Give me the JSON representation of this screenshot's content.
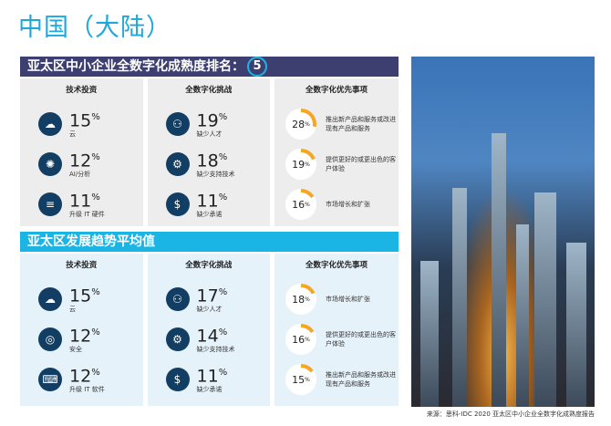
{
  "title": "中国（大陆）",
  "section1": {
    "heading": "亚太区中小企业全数字化成熟度排名：",
    "rank": "5"
  },
  "section2": {
    "heading": "亚太区发展趋势平均值"
  },
  "column_headings": [
    "技术投资",
    "全数字化挑战",
    "全数字化优先事项"
  ],
  "percent_sign": "%",
  "panel1": {
    "tech": [
      {
        "value": "15",
        "label": "云",
        "icon": "cloud-icon"
      },
      {
        "value": "12",
        "label": "AI/分析",
        "icon": "ai-brain-icon"
      },
      {
        "value": "11",
        "label": "升级 IT 硬件",
        "icon": "server-hardware-icon"
      }
    ],
    "challenges": [
      {
        "value": "19",
        "label": "缺少人才",
        "icon": "people-network-icon"
      },
      {
        "value": "18",
        "label": "缺少支持技术",
        "icon": "tech-gear-icon"
      },
      {
        "value": "11",
        "label": "缺少承诺",
        "icon": "dollar-calendar-icon"
      }
    ],
    "priorities": [
      {
        "value": "28",
        "label": "推出新产品和服务或改进现有产品和服务"
      },
      {
        "value": "19",
        "label": "提供更好的或更出色的客户体验"
      },
      {
        "value": "16",
        "label": "市场增长和扩张"
      }
    ]
  },
  "panel2": {
    "tech": [
      {
        "value": "15",
        "label": "云",
        "icon": "cloud-icon"
      },
      {
        "value": "12",
        "label": "安全",
        "icon": "fingerprint-icon"
      },
      {
        "value": "12",
        "label": "升级 IT 软件",
        "icon": "software-laptop-icon"
      }
    ],
    "challenges": [
      {
        "value": "17",
        "label": "缺少人才",
        "icon": "people-network-icon"
      },
      {
        "value": "14",
        "label": "缺少支持技术",
        "icon": "tech-gear-icon"
      },
      {
        "value": "11",
        "label": "缺少承诺",
        "icon": "dollar-calendar-icon"
      }
    ],
    "priorities": [
      {
        "value": "18",
        "label": "市场增长和扩张"
      },
      {
        "value": "16",
        "label": "提供更好的或更出色的客户体验"
      },
      {
        "value": "15",
        "label": "推出新产品和服务或改进现有产品和服务"
      }
    ]
  },
  "footer": "来源：思科-IDC 2020 亚太区中小企业全数字化成熟度报告",
  "colors": {
    "navy": "#3d3f70",
    "cyan": "#1bb5e5",
    "ring": "#f5a623",
    "icon": "#123e63"
  }
}
